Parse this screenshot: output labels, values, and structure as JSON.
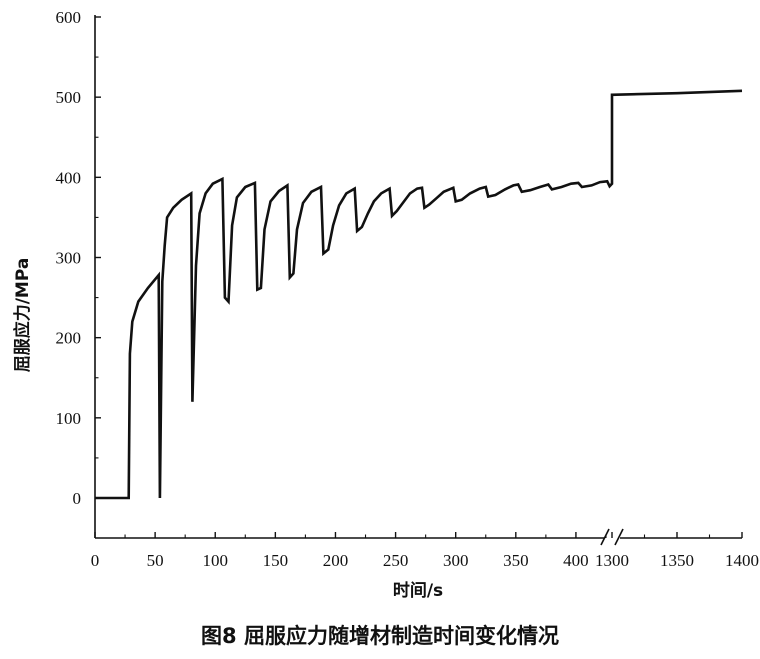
{
  "caption": "图8  屈服应力随增材制造时间变化情况",
  "chart_data": {
    "type": "line",
    "title": "",
    "xlabel": "时间/s",
    "ylabel": "屈服应力/MPa",
    "xlim": [
      0,
      1400
    ],
    "ylim": [
      0,
      600
    ],
    "axis_break": {
      "after": 430,
      "resumes_at": 1300
    },
    "x_ticks_segment1": [
      0,
      50,
      100,
      150,
      200,
      250,
      300,
      350,
      400
    ],
    "x_ticks_segment2": [
      1300,
      1350,
      1400
    ],
    "y_ticks": [
      0,
      100,
      200,
      300,
      400,
      500,
      600
    ],
    "grid": false,
    "legend": "none",
    "line_color": "#111111",
    "series": [
      {
        "points": [
          [
            0,
            0
          ],
          [
            28,
            0
          ],
          [
            29,
            180
          ],
          [
            31,
            220
          ],
          [
            36,
            245
          ],
          [
            44,
            262
          ],
          [
            53,
            278
          ],
          [
            54,
            0
          ],
          [
            56,
            270
          ],
          [
            58,
            315
          ],
          [
            60,
            350
          ],
          [
            65,
            362
          ],
          [
            72,
            372
          ],
          [
            80,
            380
          ],
          [
            81,
            120
          ],
          [
            84,
            290
          ],
          [
            87,
            355
          ],
          [
            92,
            380
          ],
          [
            98,
            392
          ],
          [
            106,
            398
          ],
          [
            108,
            250
          ],
          [
            111,
            245
          ],
          [
            114,
            340
          ],
          [
            118,
            375
          ],
          [
            125,
            388
          ],
          [
            133,
            393
          ],
          [
            135,
            260
          ],
          [
            138,
            262
          ],
          [
            141,
            335
          ],
          [
            146,
            370
          ],
          [
            153,
            383
          ],
          [
            160,
            390
          ],
          [
            162,
            275
          ],
          [
            165,
            280
          ],
          [
            168,
            335
          ],
          [
            173,
            368
          ],
          [
            180,
            382
          ],
          [
            188,
            388
          ],
          [
            190,
            305
          ],
          [
            194,
            310
          ],
          [
            198,
            340
          ],
          [
            203,
            365
          ],
          [
            209,
            380
          ],
          [
            216,
            386
          ],
          [
            218,
            333
          ],
          [
            222,
            338
          ],
          [
            227,
            355
          ],
          [
            232,
            370
          ],
          [
            238,
            380
          ],
          [
            245,
            386
          ],
          [
            247,
            352
          ],
          [
            251,
            358
          ],
          [
            256,
            368
          ],
          [
            262,
            380
          ],
          [
            268,
            386
          ],
          [
            272,
            387
          ],
          [
            274,
            362
          ],
          [
            278,
            366
          ],
          [
            284,
            374
          ],
          [
            290,
            382
          ],
          [
            298,
            387
          ],
          [
            300,
            370
          ],
          [
            305,
            372
          ],
          [
            312,
            380
          ],
          [
            320,
            386
          ],
          [
            325,
            388
          ],
          [
            327,
            376
          ],
          [
            333,
            378
          ],
          [
            341,
            385
          ],
          [
            348,
            390
          ],
          [
            352,
            391
          ],
          [
            355,
            382
          ],
          [
            362,
            384
          ],
          [
            370,
            388
          ],
          [
            377,
            391
          ],
          [
            380,
            385
          ],
          [
            388,
            388
          ],
          [
            396,
            392
          ],
          [
            402,
            393
          ],
          [
            405,
            388
          ],
          [
            413,
            390
          ],
          [
            420,
            394
          ],
          [
            426,
            395
          ],
          [
            428,
            389
          ],
          [
            435,
            392
          ],
          [
            440,
            394
          ],
          [
            443,
            395
          ],
          [
            1300,
            503
          ],
          [
            1350,
            505
          ],
          [
            1400,
            508
          ]
        ]
      }
    ]
  }
}
